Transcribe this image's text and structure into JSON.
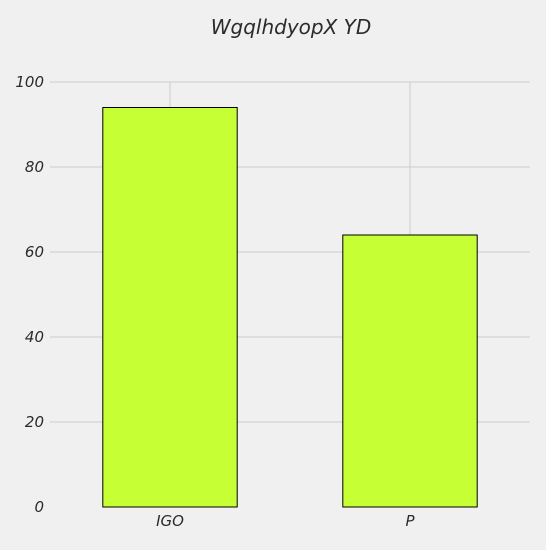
{
  "chart_data": {
    "type": "bar",
    "title": "WgqlhdyopX YD",
    "categories": [
      "IGO",
      "P"
    ],
    "values": [
      94,
      64
    ],
    "ylim": [
      0,
      100
    ],
    "yticks": [
      0,
      20,
      40,
      60,
      80,
      100
    ],
    "grid": true,
    "bar_color": "#c6ff33",
    "bar_edge_color": "#000000",
    "background_color": "#f0f0f0",
    "grid_color": "#cbcbcb"
  }
}
